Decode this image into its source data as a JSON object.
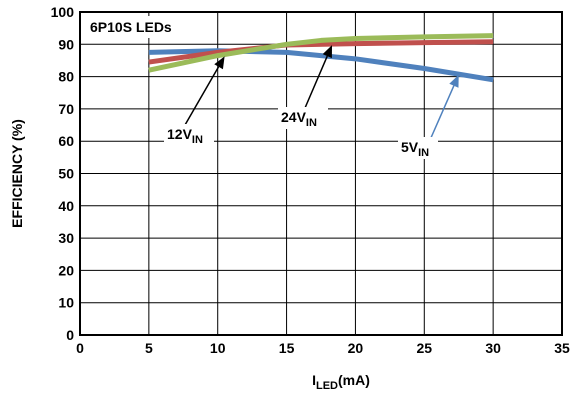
{
  "chart_data": {
    "type": "line",
    "annotation": "6P10S LEDs",
    "xlabel_main": "I",
    "xlabel_sub": "LED",
    "xlabel_tail": "(mA)",
    "ylabel": "EFFICIENCY (%)",
    "xlim": [
      0,
      35
    ],
    "ylim": [
      0,
      100
    ],
    "x_ticks": [
      0,
      5,
      10,
      15,
      20,
      25,
      30,
      35
    ],
    "y_ticks": [
      0,
      10,
      20,
      30,
      40,
      50,
      60,
      70,
      80,
      90,
      100
    ],
    "grid": true,
    "series": [
      {
        "label_main": "5V",
        "label_sub": "IN",
        "color": "#4f81bd",
        "x": [
          5,
          10,
          15,
          20,
          25,
          30
        ],
        "y": [
          87.5,
          88,
          87.5,
          85.5,
          82.5,
          79
        ]
      },
      {
        "label_main": "12V",
        "label_sub": "IN",
        "color": "#c0504d",
        "x": [
          5,
          10,
          15,
          20,
          25,
          30
        ],
        "y": [
          84.5,
          87.5,
          89.8,
          90.2,
          90.5,
          90.8
        ]
      },
      {
        "label_main": "24V",
        "label_sub": "IN",
        "color": "#9bbb59",
        "x": [
          5,
          10,
          15,
          17.5,
          20,
          25,
          30
        ],
        "y": [
          82,
          86.5,
          90,
          91.2,
          91.8,
          92.3,
          92.7
        ]
      }
    ]
  }
}
